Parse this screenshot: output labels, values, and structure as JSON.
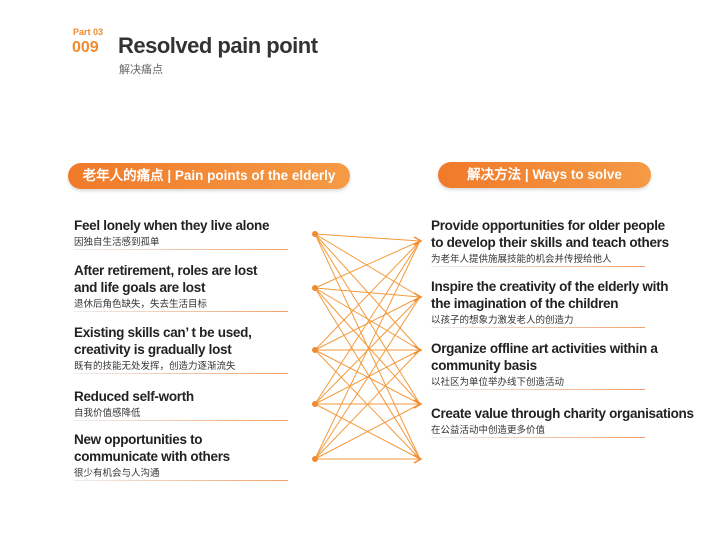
{
  "header": {
    "part": "Part 03",
    "number": "009",
    "title": "Resolved pain point",
    "subtitle": "解决痛点"
  },
  "left": {
    "heading": "老年人的痛点 | Pain points of the elderly",
    "items": [
      {
        "lines": [
          "Feel lonely when they live alone"
        ],
        "zh": "因独自生活感到孤单"
      },
      {
        "lines": [
          " After retirement, roles are lost",
          "and life goals are lost"
        ],
        "zh": "退休后角色缺失，失去生活目标"
      },
      {
        "lines": [
          "Existing skills can’ t be used,",
          "creativity is gradually lost"
        ],
        "zh": "既有的技能无处发挥，创造力逐渐流失"
      },
      {
        "lines": [
          "Reduced self-worth"
        ],
        "zh": "自我价值感降低"
      },
      {
        "lines": [
          "New opportunities to",
          "communicate with others"
        ],
        "zh": "很少有机会与人沟通"
      }
    ]
  },
  "right": {
    "heading": "解决方法 | Ways to solve",
    "items": [
      {
        "lines": [
          "Provide opportunities for older people",
          "to develop their skills and teach others"
        ],
        "zh": "为老年人提供施展技能的机会并传授给他人"
      },
      {
        "lines": [
          "Inspire the creativity of the elderly with",
          "the imagination of the children"
        ],
        "zh": "以孩子的想象力激发老人的创造力"
      },
      {
        "lines": [
          "Organize offline art activities within a",
          "community basis"
        ],
        "zh": "以社区为单位举办线下创造活动"
      },
      {
        "lines": [
          "Create value through charity organisations"
        ],
        "zh": "在公益活动中创造更多价值"
      }
    ]
  }
}
